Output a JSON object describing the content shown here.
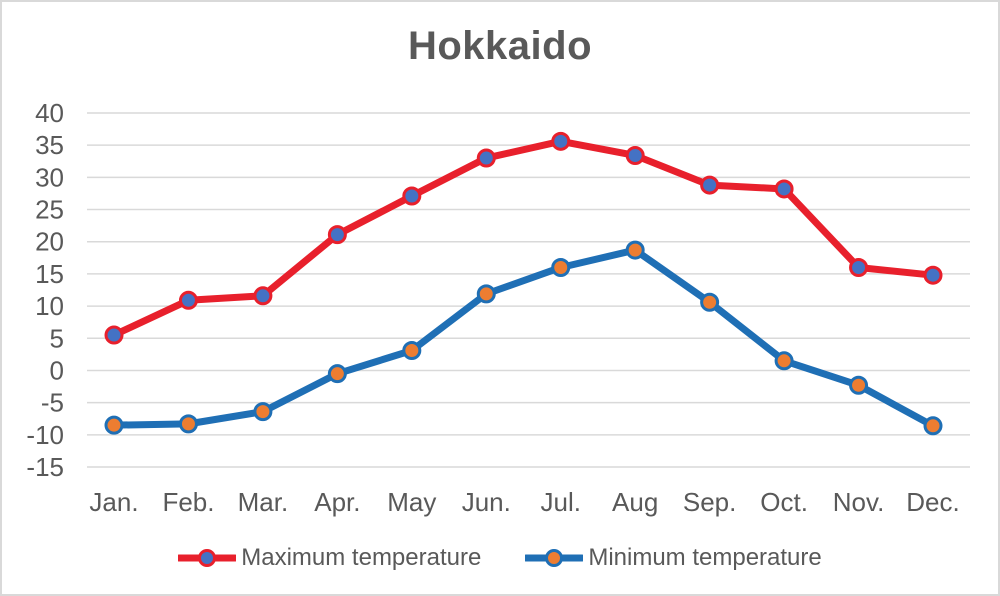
{
  "chart_data": {
    "type": "line",
    "title": "Hokkaido",
    "categories": [
      "Jan.",
      "Feb.",
      "Mar.",
      "Apr.",
      "May",
      "Jun.",
      "Jul.",
      "Aug",
      "Sep.",
      "Oct.",
      "Nov.",
      "Dec."
    ],
    "series": [
      {
        "name": "Maximum temperature",
        "values": [
          5.5,
          10.9,
          11.6,
          21.1,
          27.1,
          33.0,
          35.6,
          33.4,
          28.8,
          28.2,
          16.0,
          14.8
        ],
        "line_color": "#e8202c",
        "marker_fill": "#4472c4",
        "marker_stroke": "#e8202c"
      },
      {
        "name": "Minimum temperature",
        "values": [
          -8.5,
          -8.3,
          -6.4,
          -0.5,
          3.1,
          11.9,
          16.0,
          18.7,
          10.6,
          1.5,
          -2.3,
          -8.6
        ],
        "line_color": "#1f6fb5",
        "marker_fill": "#ed7d31",
        "marker_stroke": "#1f6fb5"
      }
    ],
    "xlabel": "",
    "ylabel": "",
    "y_axis": {
      "min": -15,
      "max": 40,
      "step": 5,
      "ticks": [
        40,
        35,
        30,
        25,
        20,
        15,
        10,
        5,
        0,
        -5,
        -10,
        -15
      ]
    },
    "grid": true,
    "legend_position": "bottom",
    "colors": {
      "text": "#595959",
      "gridline": "#d9d9d9",
      "background": "#ffffff",
      "border": "#d9d9d9"
    }
  }
}
